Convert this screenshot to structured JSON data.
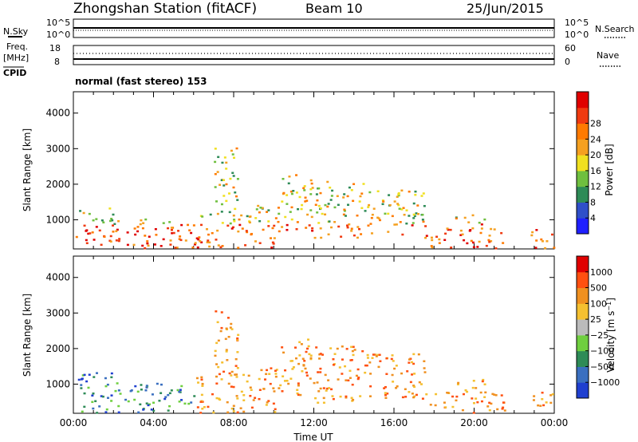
{
  "header": {
    "station": "Zhongshan Station (fitACF)",
    "beam": "Beam 10",
    "date": "25/Jun/2015"
  },
  "nsky_panel": {
    "left_label": "N.Sky",
    "right_label": "N.Search",
    "left_ticks": [
      "10^5",
      "10^0"
    ],
    "right_ticks": [
      "10^5",
      "10^0"
    ]
  },
  "freq_panel": {
    "left_label_1": "Freq.",
    "left_label_2": "[MHz]",
    "left_ticks": [
      "18",
      "8"
    ],
    "right_label": "Nave",
    "right_ticks": [
      "60",
      "0"
    ]
  },
  "cpid": {
    "label": "CPID",
    "mode_text": "normal (fast stereo) 153"
  },
  "chart_data": [
    {
      "type": "heatmap",
      "title": "",
      "ylabel": "Slant Range [km]",
      "xlabel": "",
      "x_range": [
        "00:00",
        "00:00"
      ],
      "ylim": [
        180,
        4600
      ],
      "y_ticks": [
        1000,
        2000,
        3000,
        4000
      ],
      "colorbar": {
        "label": "Power [dB]",
        "ticks": [
          "4",
          "8",
          "12",
          "16",
          "20",
          "24",
          "28"
        ],
        "colors": [
          "#1f1fff",
          "#2f4fc9",
          "#2e8b57",
          "#6fbf3f",
          "#f0e020",
          "#f5a020",
          "#ff7a00",
          "#f03a10",
          "#e00000"
        ]
      }
    },
    {
      "type": "heatmap",
      "title": "",
      "ylabel": "Slant Range [km]",
      "xlabel": "Time UT",
      "x_ticks": [
        "00:00",
        "04:00",
        "08:00",
        "12:00",
        "16:00",
        "20:00",
        "00:00"
      ],
      "ylim": [
        180,
        4600
      ],
      "y_ticks": [
        1000,
        2000,
        3000,
        4000
      ],
      "colorbar": {
        "label": "Velocity [m s^-1]",
        "ticks": [
          "1000",
          "500",
          "100",
          "25",
          "−25",
          "−100",
          "−500",
          "−1000"
        ],
        "colors": [
          "#1f3fd0",
          "#3a6fc0",
          "#2e8b57",
          "#6fcf3f",
          "#bbbbbb",
          "#f5c030",
          "#f09020",
          "#ff5010",
          "#e00000"
        ]
      }
    }
  ]
}
